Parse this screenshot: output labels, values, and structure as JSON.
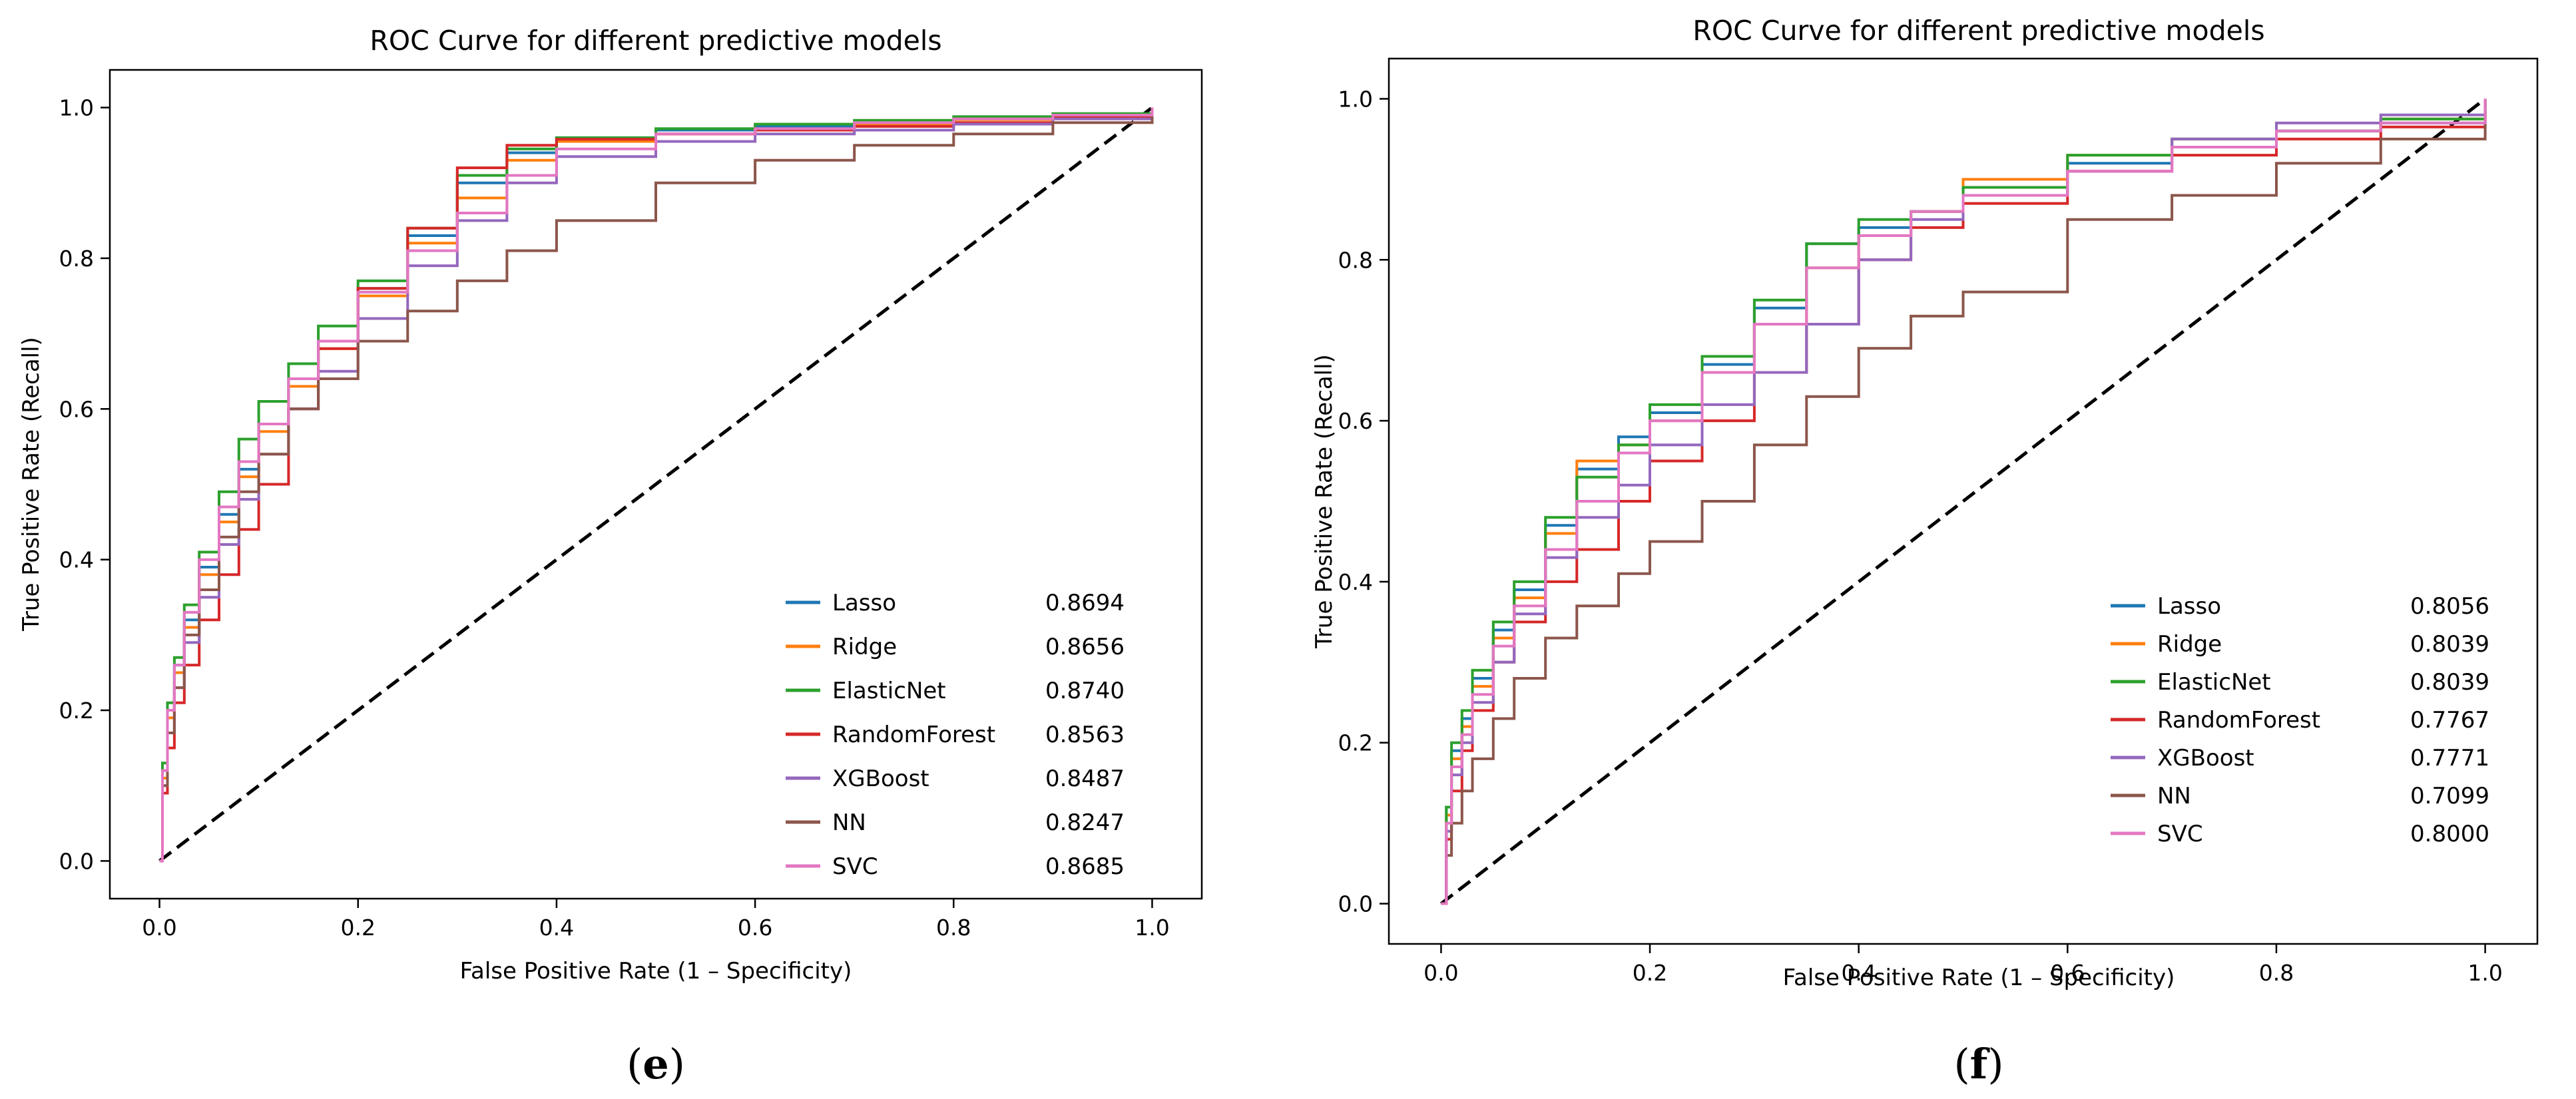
{
  "figure": {
    "panels": [
      "e",
      "f"
    ]
  },
  "chart_data": [
    {
      "type": "line",
      "panel_label": "e",
      "title": "ROC Curve for different predictive models",
      "xlabel": "False Positive Rate (1 – Specificity)",
      "ylabel": "True Positive Rate (Recall)",
      "xlim": [
        -0.05,
        1.05
      ],
      "ylim": [
        -0.05,
        1.05
      ],
      "xticks": [
        0.0,
        0.2,
        0.4,
        0.6,
        0.8,
        1.0
      ],
      "yticks": [
        0.0,
        0.2,
        0.4,
        0.6,
        0.8,
        1.0
      ],
      "tick_labels": [
        "0.0",
        "0.2",
        "0.4",
        "0.6",
        "0.8",
        "1.0"
      ],
      "grid": false,
      "legend_placement": "lower-right",
      "diagonal": {
        "style": "dashed",
        "color": "#000000",
        "x": [
          0,
          1
        ],
        "y": [
          0,
          1
        ]
      },
      "series": [
        {
          "name": "Lasso",
          "auc": "0.8694",
          "color": "#1f77b4",
          "x": [
            0,
            0.003,
            0.008,
            0.015,
            0.025,
            0.04,
            0.06,
            0.08,
            0.1,
            0.13,
            0.16,
            0.2,
            0.25,
            0.3,
            0.35,
            0.4,
            0.5,
            0.6,
            0.7,
            0.8,
            0.9,
            1.0
          ],
          "y": [
            0,
            0.12,
            0.2,
            0.26,
            0.32,
            0.39,
            0.46,
            0.52,
            0.58,
            0.64,
            0.69,
            0.76,
            0.83,
            0.9,
            0.94,
            0.96,
            0.97,
            0.975,
            0.98,
            0.985,
            0.99,
            1.0
          ]
        },
        {
          "name": "Ridge",
          "auc": "0.8656",
          "color": "#ff7f0e",
          "x": [
            0,
            0.003,
            0.008,
            0.015,
            0.025,
            0.04,
            0.06,
            0.08,
            0.1,
            0.13,
            0.16,
            0.2,
            0.25,
            0.3,
            0.35,
            0.4,
            0.5,
            0.6,
            0.7,
            0.8,
            0.9,
            1.0
          ],
          "y": [
            0,
            0.11,
            0.19,
            0.25,
            0.31,
            0.38,
            0.45,
            0.51,
            0.57,
            0.63,
            0.68,
            0.75,
            0.82,
            0.88,
            0.93,
            0.955,
            0.965,
            0.97,
            0.978,
            0.984,
            0.99,
            1.0
          ]
        },
        {
          "name": "ElasticNet",
          "auc": "0.8740",
          "color": "#2ca02c",
          "x": [
            0,
            0.003,
            0.008,
            0.015,
            0.025,
            0.04,
            0.06,
            0.08,
            0.1,
            0.13,
            0.16,
            0.2,
            0.25,
            0.3,
            0.35,
            0.4,
            0.5,
            0.6,
            0.7,
            0.8,
            0.9,
            1.0
          ],
          "y": [
            0,
            0.13,
            0.21,
            0.27,
            0.34,
            0.41,
            0.49,
            0.56,
            0.61,
            0.66,
            0.71,
            0.77,
            0.84,
            0.91,
            0.945,
            0.96,
            0.972,
            0.978,
            0.983,
            0.988,
            0.992,
            1.0
          ]
        },
        {
          "name": "RandomForest",
          "auc": "0.8563",
          "color": "#d62728",
          "x": [
            0,
            0.003,
            0.008,
            0.015,
            0.025,
            0.04,
            0.06,
            0.08,
            0.1,
            0.13,
            0.16,
            0.2,
            0.25,
            0.3,
            0.35,
            0.4,
            0.5,
            0.6,
            0.7,
            0.8,
            0.9,
            1.0
          ],
          "y": [
            0,
            0.09,
            0.15,
            0.21,
            0.26,
            0.32,
            0.38,
            0.44,
            0.5,
            0.6,
            0.68,
            0.76,
            0.84,
            0.92,
            0.95,
            0.958,
            0.965,
            0.97,
            0.975,
            0.98,
            0.988,
            1.0
          ]
        },
        {
          "name": "XGBoost",
          "auc": "0.8487",
          "color": "#9467bd",
          "x": [
            0,
            0.003,
            0.008,
            0.015,
            0.025,
            0.04,
            0.06,
            0.08,
            0.1,
            0.13,
            0.16,
            0.2,
            0.25,
            0.3,
            0.35,
            0.4,
            0.5,
            0.6,
            0.7,
            0.8,
            0.9,
            1.0
          ],
          "y": [
            0,
            0.1,
            0.17,
            0.23,
            0.29,
            0.35,
            0.42,
            0.48,
            0.54,
            0.6,
            0.65,
            0.72,
            0.79,
            0.85,
            0.9,
            0.935,
            0.955,
            0.965,
            0.97,
            0.978,
            0.985,
            1.0
          ]
        },
        {
          "name": "NN",
          "auc": "0.8247",
          "color": "#8c564b",
          "x": [
            0,
            0.003,
            0.008,
            0.015,
            0.025,
            0.04,
            0.06,
            0.08,
            0.1,
            0.13,
            0.16,
            0.2,
            0.25,
            0.3,
            0.35,
            0.4,
            0.5,
            0.6,
            0.7,
            0.8,
            0.9,
            1.0
          ],
          "y": [
            0,
            0.1,
            0.17,
            0.23,
            0.3,
            0.36,
            0.43,
            0.49,
            0.54,
            0.6,
            0.64,
            0.69,
            0.73,
            0.77,
            0.81,
            0.85,
            0.9,
            0.93,
            0.95,
            0.965,
            0.98,
            1.0
          ]
        },
        {
          "name": "SVC",
          "auc": "0.8685",
          "color": "#e377c2",
          "x": [
            0,
            0.003,
            0.008,
            0.015,
            0.025,
            0.04,
            0.06,
            0.08,
            0.1,
            0.13,
            0.16,
            0.2,
            0.25,
            0.3,
            0.35,
            0.4,
            0.5,
            0.6,
            0.7,
            0.8,
            0.9,
            1.0
          ],
          "y": [
            0,
            0.12,
            0.2,
            0.26,
            0.33,
            0.4,
            0.47,
            0.53,
            0.58,
            0.64,
            0.69,
            0.755,
            0.81,
            0.86,
            0.91,
            0.945,
            0.965,
            0.972,
            0.98,
            0.985,
            0.99,
            1.0
          ]
        }
      ]
    },
    {
      "type": "line",
      "panel_label": "f",
      "title": "ROC Curve for different predictive models",
      "xlabel": "False Positive Rate (1 – Specificity)",
      "ylabel": "True Positive Rate (Recall)",
      "xlim": [
        -0.05,
        1.05
      ],
      "ylim": [
        -0.05,
        1.05
      ],
      "xticks": [
        0.0,
        0.2,
        0.4,
        0.6,
        0.8,
        1.0
      ],
      "yticks": [
        0.0,
        0.2,
        0.4,
        0.6,
        0.8,
        1.0
      ],
      "tick_labels": [
        "0.0",
        "0.2",
        "0.4",
        "0.6",
        "0.8",
        "1.0"
      ],
      "grid": false,
      "legend_placement": "lower-right",
      "diagonal": {
        "style": "dashed",
        "color": "#000000",
        "x": [
          0,
          1
        ],
        "y": [
          0,
          1
        ]
      },
      "series": [
        {
          "name": "Lasso",
          "auc": "0.8056",
          "color": "#1f77b4",
          "x": [
            0,
            0.005,
            0.01,
            0.02,
            0.03,
            0.05,
            0.07,
            0.1,
            0.13,
            0.17,
            0.2,
            0.25,
            0.3,
            0.35,
            0.4,
            0.45,
            0.5,
            0.6,
            0.7,
            0.8,
            0.9,
            1.0
          ],
          "y": [
            0,
            0.12,
            0.19,
            0.23,
            0.28,
            0.34,
            0.39,
            0.47,
            0.54,
            0.58,
            0.61,
            0.67,
            0.74,
            0.82,
            0.84,
            0.86,
            0.88,
            0.92,
            0.95,
            0.96,
            0.97,
            1.0
          ]
        },
        {
          "name": "Ridge",
          "auc": "0.8039",
          "color": "#ff7f0e",
          "x": [
            0,
            0.005,
            0.01,
            0.02,
            0.03,
            0.05,
            0.07,
            0.1,
            0.13,
            0.17,
            0.2,
            0.25,
            0.3,
            0.35,
            0.4,
            0.45,
            0.5,
            0.6,
            0.7,
            0.8,
            0.9,
            1.0
          ],
          "y": [
            0,
            0.11,
            0.18,
            0.22,
            0.27,
            0.33,
            0.38,
            0.46,
            0.55,
            0.57,
            0.6,
            0.66,
            0.72,
            0.79,
            0.83,
            0.86,
            0.9,
            0.93,
            0.95,
            0.96,
            0.975,
            1.0
          ]
        },
        {
          "name": "ElasticNet",
          "auc": "0.8039",
          "color": "#2ca02c",
          "x": [
            0,
            0.005,
            0.01,
            0.02,
            0.03,
            0.05,
            0.07,
            0.1,
            0.13,
            0.17,
            0.2,
            0.25,
            0.3,
            0.35,
            0.4,
            0.45,
            0.5,
            0.6,
            0.7,
            0.8,
            0.9,
            1.0
          ],
          "y": [
            0,
            0.12,
            0.2,
            0.24,
            0.29,
            0.35,
            0.4,
            0.48,
            0.53,
            0.57,
            0.62,
            0.68,
            0.75,
            0.82,
            0.85,
            0.86,
            0.89,
            0.93,
            0.95,
            0.96,
            0.975,
            1.0
          ]
        },
        {
          "name": "RandomForest",
          "auc": "0.7767",
          "color": "#d62728",
          "x": [
            0,
            0.005,
            0.01,
            0.02,
            0.03,
            0.05,
            0.07,
            0.1,
            0.13,
            0.17,
            0.2,
            0.25,
            0.3,
            0.35,
            0.4,
            0.45,
            0.5,
            0.6,
            0.7,
            0.8,
            0.9,
            1.0
          ],
          "y": [
            0,
            0.08,
            0.14,
            0.19,
            0.24,
            0.3,
            0.35,
            0.4,
            0.44,
            0.5,
            0.55,
            0.6,
            0.66,
            0.72,
            0.8,
            0.84,
            0.87,
            0.91,
            0.93,
            0.95,
            0.965,
            1.0
          ]
        },
        {
          "name": "XGBoost",
          "auc": "0.7771",
          "color": "#9467bd",
          "x": [
            0,
            0.005,
            0.01,
            0.02,
            0.03,
            0.05,
            0.07,
            0.1,
            0.13,
            0.17,
            0.2,
            0.25,
            0.3,
            0.35,
            0.4,
            0.45,
            0.5,
            0.6,
            0.7,
            0.8,
            0.9,
            1.0
          ],
          "y": [
            0,
            0.09,
            0.16,
            0.2,
            0.25,
            0.3,
            0.36,
            0.43,
            0.48,
            0.52,
            0.57,
            0.62,
            0.66,
            0.72,
            0.8,
            0.85,
            0.88,
            0.91,
            0.95,
            0.97,
            0.98,
            1.0
          ]
        },
        {
          "name": "NN",
          "auc": "0.7099",
          "color": "#8c564b",
          "x": [
            0,
            0.005,
            0.01,
            0.02,
            0.03,
            0.05,
            0.07,
            0.1,
            0.13,
            0.17,
            0.2,
            0.25,
            0.3,
            0.35,
            0.4,
            0.45,
            0.5,
            0.6,
            0.7,
            0.8,
            0.9,
            1.0
          ],
          "y": [
            0,
            0.06,
            0.1,
            0.14,
            0.18,
            0.23,
            0.28,
            0.33,
            0.37,
            0.41,
            0.45,
            0.5,
            0.57,
            0.63,
            0.69,
            0.73,
            0.76,
            0.85,
            0.88,
            0.92,
            0.95,
            1.0
          ]
        },
        {
          "name": "SVC",
          "auc": "0.8000",
          "color": "#e377c2",
          "x": [
            0,
            0.005,
            0.01,
            0.02,
            0.03,
            0.05,
            0.07,
            0.1,
            0.13,
            0.17,
            0.2,
            0.25,
            0.3,
            0.35,
            0.4,
            0.45,
            0.5,
            0.6,
            0.7,
            0.8,
            0.9,
            1.0
          ],
          "y": [
            0,
            0.1,
            0.17,
            0.21,
            0.26,
            0.32,
            0.37,
            0.44,
            0.5,
            0.56,
            0.6,
            0.66,
            0.72,
            0.79,
            0.83,
            0.86,
            0.88,
            0.91,
            0.94,
            0.96,
            0.97,
            1.0
          ]
        }
      ]
    }
  ]
}
